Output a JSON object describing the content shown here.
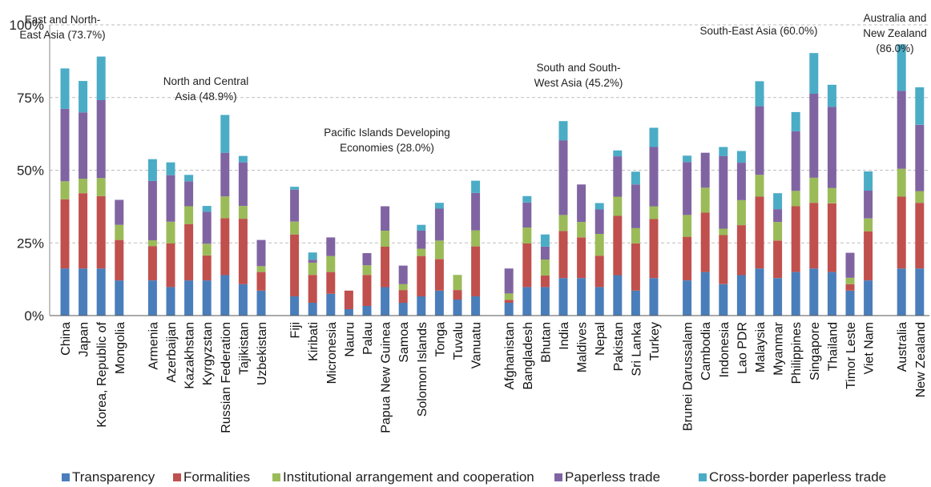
{
  "chart_data": {
    "type": "bar",
    "stacked": true,
    "ylim": [
      0,
      100
    ],
    "y_ticks": [
      "0%",
      "25%",
      "50%",
      "75%",
      "100%"
    ],
    "grid": "horizontal dashed",
    "legend_placement": "bottom",
    "series": [
      {
        "name": "Transparency",
        "color": "#4a7ebb"
      },
      {
        "name": "Formalities",
        "color": "#c0504d"
      },
      {
        "name": "Institutional arrangement and cooperation",
        "color": "#9bbb59"
      },
      {
        "name": "Paperless trade",
        "color": "#8064a2"
      },
      {
        "name": "Cross-border paperless trade",
        "color": "#4bacc6"
      }
    ],
    "groups": [
      {
        "label": [
          "East and North-",
          "East Asia (73.7%)"
        ],
        "categories": [
          {
            "name": "China",
            "values": [
              16.2,
              23.8,
              6.2,
              24.9,
              13.9
            ]
          },
          {
            "name": "Japan",
            "values": [
              16.2,
              25.9,
              5.0,
              22.8,
              10.8
            ]
          },
          {
            "name": "Korea, Republic of",
            "values": [
              16.2,
              24.9,
              6.2,
              26.8,
              15.0
            ]
          },
          {
            "name": "Mongolia",
            "values": [
              12.1,
              13.9,
              5.2,
              8.6,
              0.0
            ]
          }
        ]
      },
      {
        "label": [
          "North and Central",
          "Asia (48.9%)"
        ],
        "categories": [
          {
            "name": "Armenia",
            "values": [
              12.1,
              11.8,
              2.0,
              20.4,
              7.5
            ]
          },
          {
            "name": "Azerbaijan",
            "values": [
              9.8,
              15.0,
              7.5,
              16.0,
              4.4
            ]
          },
          {
            "name": "Kazakhstan",
            "values": [
              12.1,
              19.3,
              6.2,
              8.6,
              2.2
            ]
          },
          {
            "name": "Kyrgyzstan",
            "values": [
              12.1,
              8.6,
              4.0,
              11.0,
              2.0
            ]
          },
          {
            "name": "Russian Federation",
            "values": [
              13.9,
              19.6,
              7.5,
              15.0,
              13.0
            ]
          },
          {
            "name": "Tajikistan",
            "values": [
              10.8,
              22.5,
              4.4,
              15.0,
              2.2
            ]
          },
          {
            "name": "Uzbekistan",
            "values": [
              8.6,
              6.4,
              2.0,
              9.0,
              0.0
            ]
          }
        ]
      },
      {
        "label": [
          "Pacific Islands Developing",
          "Economies (28.0%)"
        ],
        "categories": [
          {
            "name": "Fiji",
            "values": [
              6.6,
              21.3,
              4.4,
              11.0,
              1.0
            ]
          },
          {
            "name": "Kiribati",
            "values": [
              4.4,
              9.6,
              4.2,
              1.0,
              2.5
            ]
          },
          {
            "name": "Micronesia",
            "values": [
              7.5,
              7.5,
              5.5,
              6.4,
              0.0
            ]
          },
          {
            "name": "Nauru",
            "values": [
              2.2,
              6.4,
              0.0,
              0.0,
              0.0
            ]
          },
          {
            "name": "Palau",
            "values": [
              3.3,
              10.7,
              3.3,
              4.2,
              0.0
            ]
          },
          {
            "name": "Papua New Guinea",
            "values": [
              9.8,
              13.9,
              5.5,
              8.4,
              0.0
            ]
          },
          {
            "name": "Samoa",
            "values": [
              4.4,
              4.4,
              2.0,
              6.4,
              0.0
            ]
          },
          {
            "name": "Solomon Islands",
            "values": [
              6.6,
              13.9,
              2.5,
              6.2,
              2.0
            ]
          },
          {
            "name": "Tonga",
            "values": [
              8.6,
              10.8,
              6.4,
              11.0,
              2.0
            ]
          },
          {
            "name": "Tuvalu",
            "values": [
              5.5,
              3.3,
              5.2,
              0.0,
              0.0
            ]
          },
          {
            "name": "Vanuatu",
            "values": [
              6.6,
              17.2,
              5.5,
              12.9,
              4.2
            ]
          }
        ]
      },
      {
        "label": [
          "South and South-",
          "West Asia (45.2%)"
        ],
        "categories": [
          {
            "name": "Afghanistan",
            "values": [
              4.4,
              1.0,
              2.2,
              8.6,
              0.0
            ]
          },
          {
            "name": "Bangladesh",
            "values": [
              9.8,
              15.0,
              5.5,
              8.6,
              2.2
            ]
          },
          {
            "name": "Bhutan",
            "values": [
              9.8,
              4.0,
              5.5,
              4.4,
              4.2
            ]
          },
          {
            "name": "India",
            "values": [
              12.9,
              16.2,
              5.5,
              25.7,
              6.6
            ]
          },
          {
            "name": "Maldives",
            "values": [
              12.9,
              14.0,
              5.3,
              12.9,
              0.0
            ]
          },
          {
            "name": "Nepal",
            "values": [
              9.8,
              10.8,
              7.5,
              8.4,
              2.2
            ]
          },
          {
            "name": "Pakistan",
            "values": [
              13.9,
              20.4,
              6.6,
              13.9,
              2.0
            ]
          },
          {
            "name": "Sri Lanka",
            "values": [
              8.6,
              16.2,
              5.3,
              15.0,
              4.4
            ]
          },
          {
            "name": "Turkey",
            "values": [
              12.9,
              20.3,
              4.4,
              20.4,
              6.6
            ]
          }
        ]
      },
      {
        "label": [
          "South-East Asia (60.0%)"
        ],
        "categories": [
          {
            "name": "Brunei Darussalam",
            "values": [
              12.1,
              15.0,
              7.5,
              18.2,
              2.2
            ]
          },
          {
            "name": "Cambodia",
            "values": [
              15.0,
              20.4,
              8.6,
              12.0,
              0.0
            ]
          },
          {
            "name": "Indonesia",
            "values": [
              10.8,
              16.9,
              2.2,
              25.0,
              3.1
            ]
          },
          {
            "name": "Lao PDR",
            "values": [
              13.9,
              17.2,
              8.6,
              12.9,
              4.0
            ]
          },
          {
            "name": "Malaysia",
            "values": [
              16.2,
              24.7,
              7.5,
              23.6,
              8.6
            ]
          },
          {
            "name": "Myanmar",
            "values": [
              12.9,
              12.9,
              6.4,
              4.4,
              5.5
            ]
          },
          {
            "name": "Philippines",
            "values": [
              15.0,
              22.6,
              5.3,
              20.5,
              6.6
            ]
          },
          {
            "name": "Singapore",
            "values": [
              16.2,
              22.6,
              8.6,
              28.9,
              14.0
            ]
          },
          {
            "name": "Thailand",
            "values": [
              15.0,
              23.6,
              5.3,
              27.9,
              7.6
            ]
          },
          {
            "name": "Timor Leste",
            "values": [
              8.6,
              2.2,
              2.2,
              8.6,
              0.0
            ]
          },
          {
            "name": "Viet Nam",
            "values": [
              12.1,
              16.9,
              4.4,
              9.6,
              6.6
            ]
          }
        ]
      },
      {
        "label": [
          "Australia and",
          "New Zealand",
          "(86.0%)"
        ],
        "categories": [
          {
            "name": "Australia",
            "values": [
              16.2,
              24.7,
              9.6,
              26.8,
              16.0
            ]
          },
          {
            "name": "New Zealand",
            "values": [
              16.2,
              22.6,
              4.0,
              22.8,
              12.9
            ]
          }
        ]
      }
    ]
  }
}
